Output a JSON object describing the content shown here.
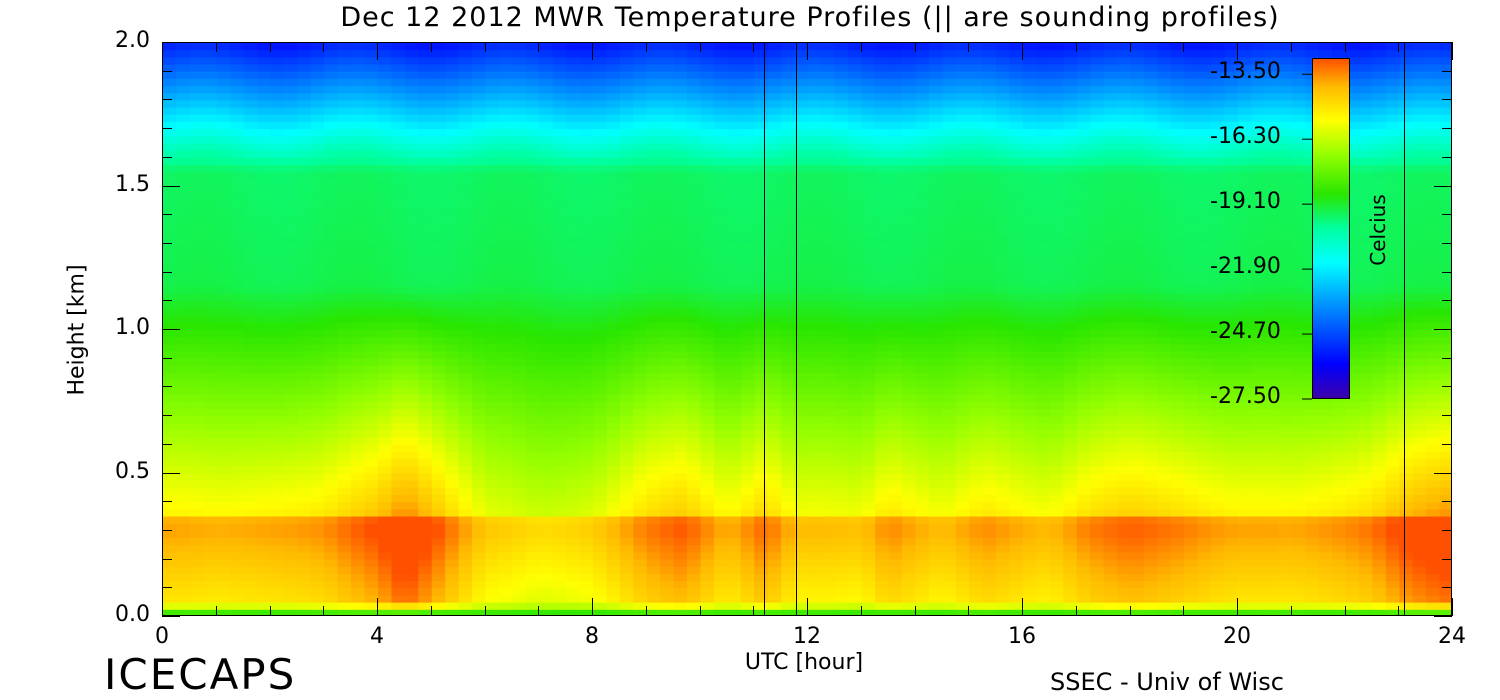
{
  "chart_data": {
    "type": "heatmap",
    "title": "Dec 12 2012 MWR Temperature Profiles (|| are sounding profiles)",
    "xlabel": "UTC [hour]",
    "ylabel": "Height [km]",
    "xlim": [
      0,
      24
    ],
    "ylim": [
      0,
      2.0
    ],
    "x_ticks": [
      "0",
      "4",
      "8",
      "12",
      "16",
      "20",
      "24"
    ],
    "y_ticks": [
      "0.0",
      "0.5",
      "1.0",
      "1.5",
      "2.0"
    ],
    "colorbar": {
      "label": "Celcius",
      "ticks": [
        "-13.50",
        "-16.30",
        "-19.10",
        "-21.90",
        "-24.70",
        "-27.50"
      ],
      "range": [
        -27.5,
        -12.8
      ]
    },
    "sounding_times_hour": [
      11.2,
      11.8,
      23.1
    ],
    "profile_x": [
      0,
      1,
      2,
      3,
      4,
      4.5,
      5,
      6,
      7,
      8,
      9,
      9.7,
      10.5,
      11.2,
      11.8,
      13,
      13.5,
      14.5,
      15.3,
      16.5,
      17.2,
      18,
      19,
      20,
      21,
      22.5,
      23.1,
      24
    ],
    "peak_temp_c": [
      -15.2,
      -15.4,
      -15.1,
      -15.0,
      -14.2,
      -13.3,
      -14.0,
      -15.8,
      -16.2,
      -15.8,
      -14.8,
      -14.4,
      -15.3,
      -14.5,
      -15.6,
      -15.6,
      -14.8,
      -15.6,
      -15.0,
      -15.4,
      -14.8,
      -14.5,
      -14.7,
      -15.2,
      -15.3,
      -14.6,
      -14.0,
      -13.5
    ]
  },
  "footer": {
    "left": "ICECAPS",
    "right": "SSEC - Univ of Wisc"
  },
  "colors": {
    "warm": "#ff6a00",
    "cool": "#00ffff",
    "cold": "#2a00c0"
  }
}
